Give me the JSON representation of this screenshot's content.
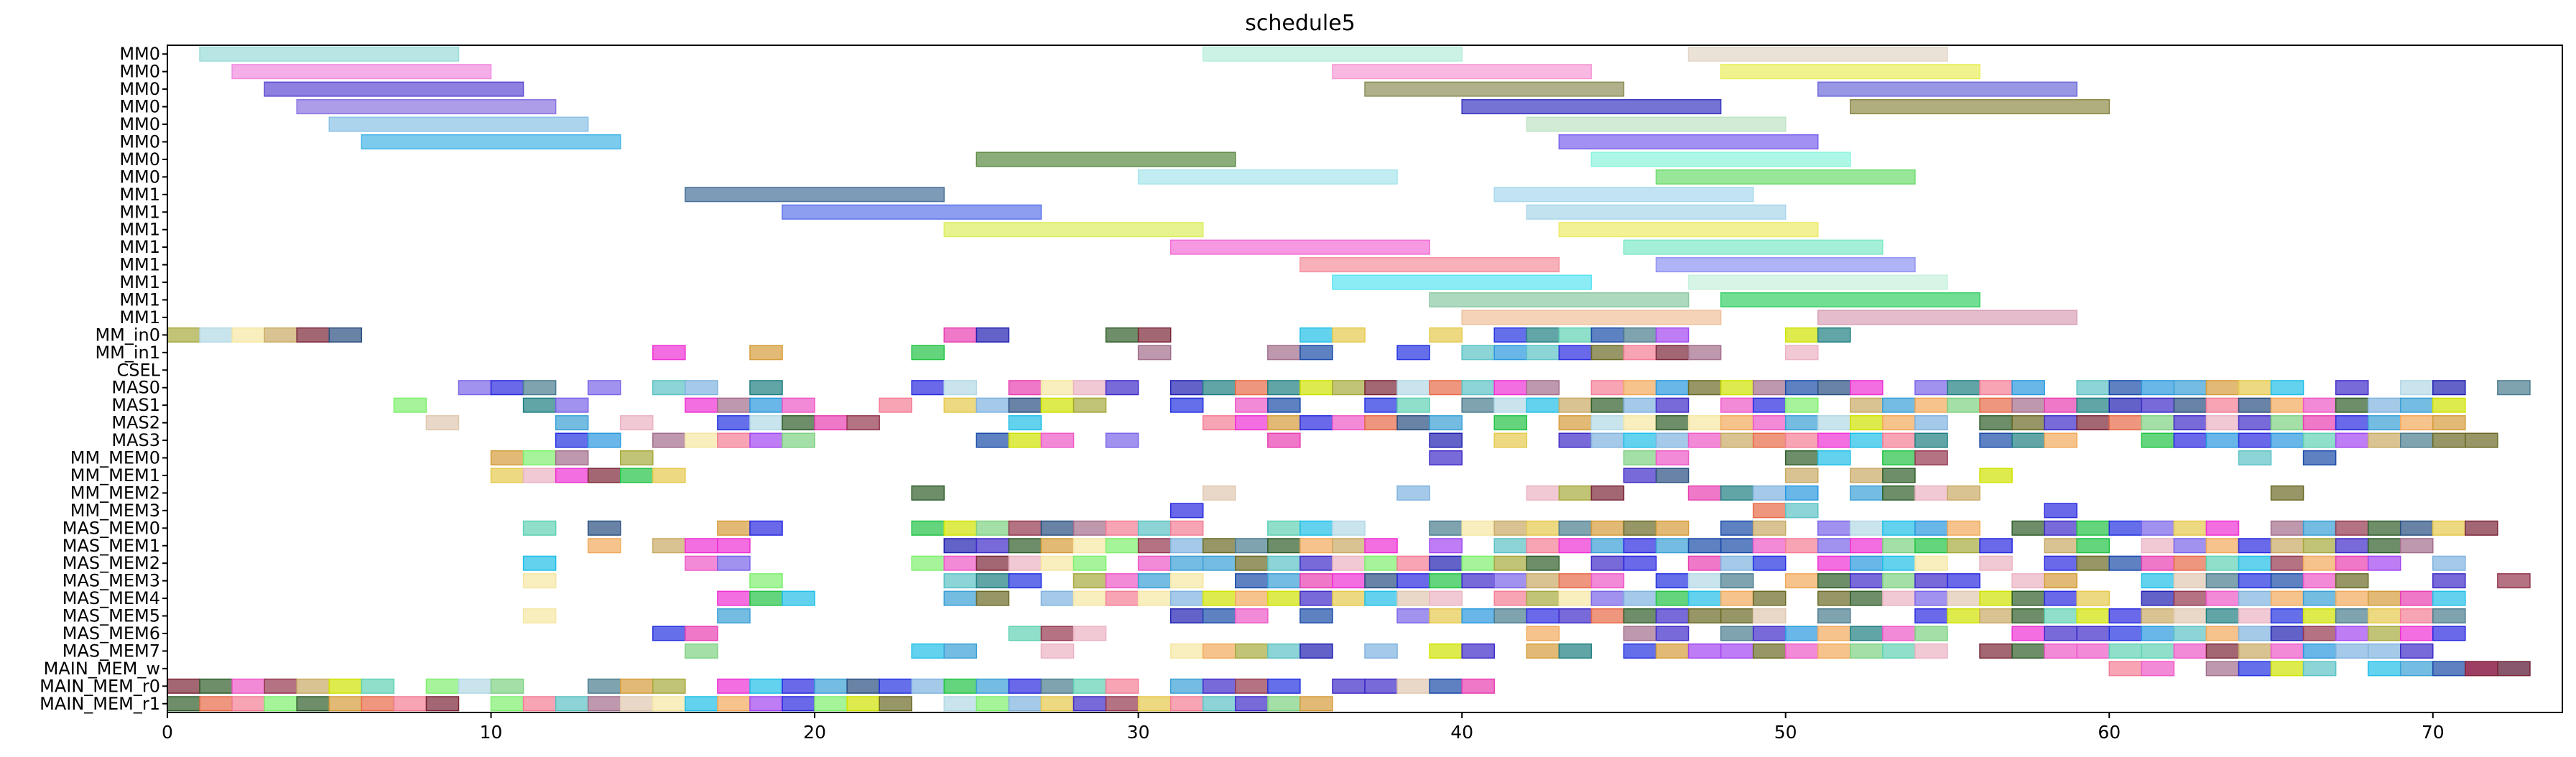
{
  "chart_data": {
    "type": "gantt",
    "title": "schedule5",
    "xlabel": "",
    "ylabel": "",
    "xlim": [
      0,
      74
    ],
    "x_ticks": [
      0,
      10,
      20,
      30,
      40,
      50,
      60,
      70
    ],
    "grid": false,
    "rows": [
      "MM0",
      "MM0",
      "MM0",
      "MM0",
      "MM0",
      "MM0",
      "MM0",
      "MM0",
      "MM1",
      "MM1",
      "MM1",
      "MM1",
      "MM1",
      "MM1",
      "MM1",
      "MM1",
      "MM_in0",
      "MM_in1",
      "CSEL",
      "MAS0",
      "MAS1",
      "MAS2",
      "MAS3",
      "MM_MEM0",
      "MM_MEM1",
      "MM_MEM2",
      "MM_MEM3",
      "MAS_MEM0",
      "MAS_MEM1",
      "MAS_MEM2",
      "MAS_MEM3",
      "MAS_MEM4",
      "MAS_MEM5",
      "MAS_MEM6",
      "MAS_MEM7",
      "MAIN_MEM_w",
      "MAIN_MEM_r0",
      "MAIN_MEM_r1"
    ],
    "palette": [
      "#5bc2c4",
      "#ee58c8",
      "#3e2bc7",
      "#3f2bc9",
      "#3aa0d6",
      "#2a99de",
      "#5fd1b4",
      "#e83fb2",
      "#6a6a25",
      "#2020b2",
      "#7ed282",
      "#2a2ae0",
      "#a6a93c",
      "#294f80",
      "#e6c94c",
      "#1a4ba8",
      "#2332e0",
      "#d0e300",
      "#21bfe7",
      "#f47d96",
      "#7a64e8",
      "#ee30d3",
      "#ebb2c2",
      "#22c344",
      "#e0c8b0",
      "#7fb3e0",
      "#f5e7a3",
      "#a26d8b",
      "#d59c3b",
      "#7fef6e",
      "#a246f0",
      "#2f5e2a",
      "#1f7f81",
      "#7b2638",
      "#e86a47",
      "#c9aa64",
      "#f2a95b",
      "#94384f",
      "#4a7c8f",
      "#b2d9e6"
    ],
    "tasks": [
      {
        "row": 0,
        "start": 1,
        "end": 9,
        "color": "#9adbd9"
      },
      {
        "row": 0,
        "start": 32,
        "end": 40,
        "color": "#b6eddc"
      },
      {
        "row": 0,
        "start": 47,
        "end": 55,
        "color": "#e3d6c6"
      },
      {
        "row": 1,
        "start": 2,
        "end": 10,
        "color": "#f28ce0"
      },
      {
        "row": 1,
        "start": 36,
        "end": 44,
        "color": "#f59ad5"
      },
      {
        "row": 1,
        "start": 48,
        "end": 56,
        "color": "#e9ee5c"
      },
      {
        "row": 2,
        "start": 3,
        "end": 11,
        "color": "#5c4ad3"
      },
      {
        "row": 2,
        "start": 37,
        "end": 45,
        "color": "#8f8f58"
      },
      {
        "row": 2,
        "start": 51,
        "end": 59,
        "color": "#6d6ad8"
      },
      {
        "row": 3,
        "start": 4,
        "end": 12,
        "color": "#8a74e0"
      },
      {
        "row": 3,
        "start": 40,
        "end": 48,
        "color": "#3a37c0"
      },
      {
        "row": 3,
        "start": 52,
        "end": 60,
        "color": "#8e8a48"
      },
      {
        "row": 4,
        "start": 5,
        "end": 13,
        "color": "#8ac2e6"
      },
      {
        "row": 4,
        "start": 42,
        "end": 50,
        "color": "#bde3c4"
      },
      {
        "row": 5,
        "start": 6,
        "end": 14,
        "color": "#44b4e6"
      },
      {
        "row": 5,
        "start": 43,
        "end": 51,
        "color": "#7b62ec"
      },
      {
        "row": 6,
        "start": 25,
        "end": 33,
        "color": "#5a8a42"
      },
      {
        "row": 6,
        "start": 44,
        "end": 52,
        "color": "#8af4dd"
      },
      {
        "row": 7,
        "start": 30,
        "end": 38,
        "color": "#a6e6ec"
      },
      {
        "row": 7,
        "start": 46,
        "end": 54,
        "color": "#6cdc6c"
      },
      {
        "row": 8,
        "start": 16,
        "end": 24,
        "color": "#466f99"
      },
      {
        "row": 8,
        "start": 41,
        "end": 49,
        "color": "#a8d8ec"
      },
      {
        "row": 9,
        "start": 19,
        "end": 27,
        "color": "#5c74ea"
      },
      {
        "row": 9,
        "start": 42,
        "end": 50,
        "color": "#a8d6ea"
      },
      {
        "row": 10,
        "start": 24,
        "end": 32,
        "color": "#dcee5e"
      },
      {
        "row": 10,
        "start": 43,
        "end": 51,
        "color": "#eceb6a"
      },
      {
        "row": 11,
        "start": 31,
        "end": 39,
        "color": "#f26dd6"
      },
      {
        "row": 11,
        "start": 45,
        "end": 53,
        "color": "#7ee8c7"
      },
      {
        "row": 12,
        "start": 35,
        "end": 43,
        "color": "#f5909e"
      },
      {
        "row": 12,
        "start": 46,
        "end": 54,
        "color": "#8e94f2"
      },
      {
        "row": 13,
        "start": 36,
        "end": 44,
        "color": "#5ae4f2"
      },
      {
        "row": 13,
        "start": 47,
        "end": 55,
        "color": "#c6f1dc"
      },
      {
        "row": 14,
        "start": 39,
        "end": 47,
        "color": "#8ac9a2"
      },
      {
        "row": 14,
        "start": 48,
        "end": 56,
        "color": "#36d066"
      },
      {
        "row": 15,
        "start": 40,
        "end": 48,
        "color": "#efc09a"
      },
      {
        "row": 15,
        "start": 51,
        "end": 59,
        "color": "#d8a0b6"
      }
    ]
  }
}
